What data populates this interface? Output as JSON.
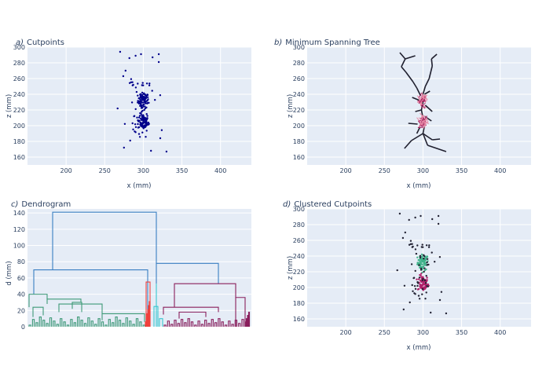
{
  "colors": {
    "plot_bg": "#e5ecf6",
    "points": "#00008b",
    "mst_dark": "#1f1f2e",
    "mst_pink": "#e88aa6",
    "mst_magenta": "#a0185a",
    "dend_blue": "#3a7fc2",
    "dend_green": "#3f9a78",
    "dend_red": "#f0403c",
    "dend_cyan": "#38c8d0",
    "dend_maroon": "#8a1f5c",
    "cluster_green": "#3fb28a",
    "cluster_magenta": "#b0206a",
    "cluster_noise": "#222233"
  },
  "chart_data": [
    {
      "id": "a",
      "type": "scatter",
      "panel_label": "a)",
      "title": "Cutpoints",
      "xlabel": "x  (mm)",
      "ylabel": "z  (mm)",
      "xlim": [
        150,
        440
      ],
      "ylim": [
        150,
        300
      ],
      "xticks": [
        200,
        250,
        300,
        350,
        400
      ],
      "yticks": [
        160,
        180,
        200,
        220,
        240,
        260,
        280,
        300
      ]
    },
    {
      "id": "b",
      "type": "line",
      "panel_label": "b)",
      "title": "Minimum Spanning Tree",
      "xlabel": "x  (mm)",
      "ylabel": "z  (mm)",
      "xlim": [
        150,
        440
      ],
      "ylim": [
        150,
        300
      ],
      "xticks": [
        200,
        250,
        300,
        350,
        400
      ],
      "yticks": [
        160,
        180,
        200,
        220,
        240,
        260,
        280,
        300
      ]
    },
    {
      "id": "c",
      "type": "line",
      "panel_label": "c)",
      "title": "Dendrogram",
      "xlabel": "",
      "ylabel": "d  (mm)",
      "ylim": [
        0,
        145
      ],
      "yticks": [
        0,
        20,
        40,
        60,
        80,
        100,
        120,
        140
      ],
      "top_merge_height": 141,
      "left_branch_height": 70,
      "right_branch_height": 78
    },
    {
      "id": "d",
      "type": "scatter",
      "panel_label": "d)",
      "title": "Clustered Cutpoints",
      "xlabel": "x  (mm)",
      "ylabel": "z  (mm)",
      "xlim": [
        150,
        440
      ],
      "ylim": [
        150,
        300
      ],
      "xticks": [
        200,
        250,
        300,
        350,
        400
      ],
      "yticks": [
        160,
        180,
        200,
        220,
        240,
        260,
        280,
        300
      ]
    }
  ]
}
